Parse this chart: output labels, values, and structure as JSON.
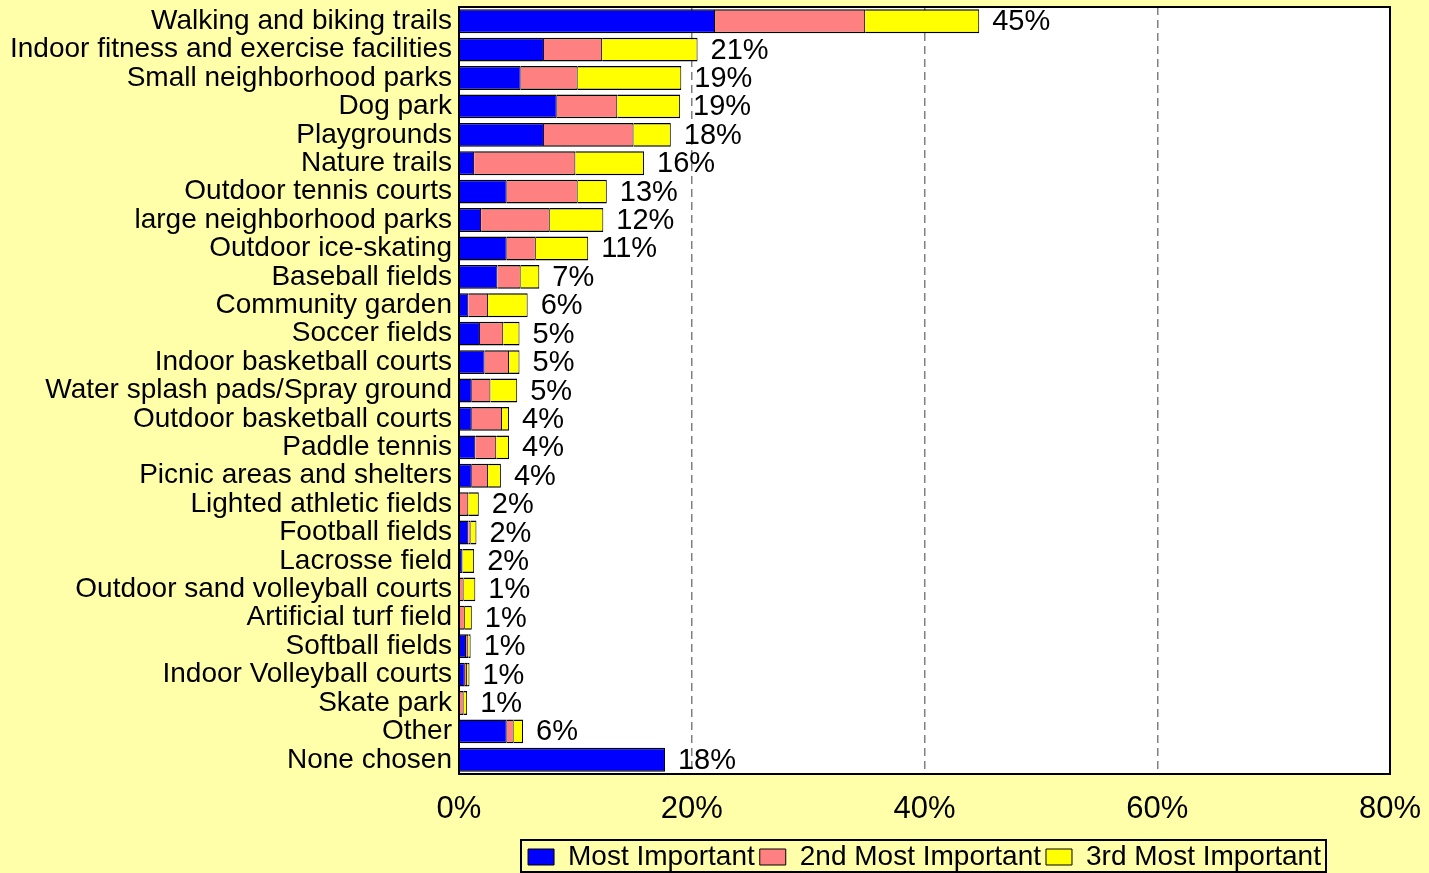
{
  "chart_data": {
    "type": "bar",
    "orientation": "horizontal",
    "stacked": true,
    "categories": [
      "Walking and biking trails",
      "Indoor fitness and exercise facilities",
      "Small neighborhood parks",
      "Dog park",
      "Playgrounds",
      "Nature trails",
      "Outdoor tennis courts",
      "large neighborhood parks",
      "Outdoor ice-skating",
      "Baseball fields",
      "Community garden",
      "Soccer fields",
      "Indoor basketball courts",
      "Water splash pads/Spray ground",
      "Outdoor basketball courts",
      "Paddle tennis",
      "Picnic areas and shelters",
      "Lighted athletic fields",
      "Football fields",
      "Lacrosse field",
      "Outdoor sand volleyball courts",
      "Artificial turf field",
      "Softball fields",
      "Indoor Volleyball courts",
      "Skate park",
      "Other",
      "None chosen"
    ],
    "series": [
      {
        "name": "Most Important",
        "color": "#0000ff",
        "values": [
          22.0,
          7.3,
          5.3,
          8.4,
          7.3,
          1.3,
          4.1,
          1.9,
          4.1,
          3.3,
          0.8,
          1.8,
          2.2,
          1.1,
          1.1,
          1.4,
          1.1,
          null,
          0.8,
          0.3,
          null,
          null,
          0.6,
          0.5,
          null,
          4.1,
          17.7
        ]
      },
      {
        "name": "2nd Most Important",
        "color": "#ff8080",
        "values": [
          12.9,
          5.0,
          4.9,
          5.2,
          7.7,
          8.7,
          6.1,
          5.9,
          2.5,
          2.0,
          1.7,
          2.0,
          2.1,
          1.6,
          2.6,
          1.8,
          1.4,
          0.8,
          0.2,
          null,
          0.4,
          0.5,
          0.2,
          0.2,
          0.4,
          0.6,
          null
        ]
      },
      {
        "name": "3rd Most Important",
        "color": "#ffff00",
        "values": [
          9.8,
          8.2,
          8.9,
          5.4,
          3.2,
          5.9,
          2.5,
          4.6,
          4.5,
          1.6,
          3.4,
          1.4,
          0.9,
          2.3,
          0.6,
          1.1,
          1.1,
          0.9,
          0.5,
          1.0,
          1.0,
          0.6,
          0.2,
          0.2,
          0.3,
          0.8,
          null
        ]
      }
    ],
    "totals": [
      "45%",
      "21%",
      "19%",
      "19%",
      "18%",
      "16%",
      "13%",
      "12%",
      "11%",
      "7%",
      "6%",
      "5%",
      "5%",
      "5%",
      "4%",
      "4%",
      "4%",
      "2%",
      "2%",
      "2%",
      "1%",
      "1%",
      "1%",
      "1%",
      "1%",
      "6%",
      "18%"
    ],
    "xlim": [
      0,
      80
    ],
    "xticks": [
      {
        "value": 0,
        "label": "0%"
      },
      {
        "value": 20,
        "label": "20%"
      },
      {
        "value": 40,
        "label": "40%"
      },
      {
        "value": 60,
        "label": "60%"
      },
      {
        "value": 80,
        "label": "80%"
      }
    ],
    "grid": "x",
    "legend": "bottom"
  }
}
